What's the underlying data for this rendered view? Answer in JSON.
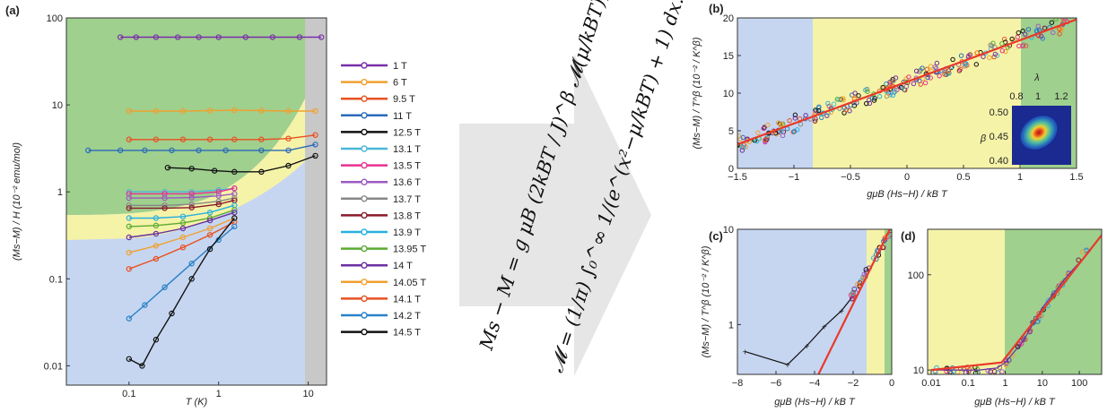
{
  "chart_data": [
    {
      "panel": "(a)",
      "type": "line",
      "xlabel": "T (K)",
      "ylabel": "(Ms−M) / H (10⁻² emu/mol)",
      "xscale": "log",
      "yscale": "log",
      "xlim": [
        0.02,
        16
      ],
      "ylim": [
        0.006,
        100
      ],
      "xticks": [
        {
          "v": 0.1,
          "label": "0.1"
        },
        {
          "v": 1,
          "label": "1"
        },
        {
          "v": 10,
          "label": "10"
        }
      ],
      "yticks": [
        {
          "v": 0.01,
          "label": "0.01"
        },
        {
          "v": 0.1,
          "label": "0.1"
        },
        {
          "v": 1,
          "label": "1"
        },
        {
          "v": 10,
          "label": "10"
        },
        {
          "v": 100,
          "label": "100"
        }
      ],
      "series": [
        {
          "name": "1 T",
          "color": "#7a2ea8",
          "x": [
            0.08,
            0.12,
            0.2,
            0.35,
            0.6,
            1,
            2,
            4,
            8,
            14
          ],
          "y": [
            60,
            60,
            60,
            60,
            60,
            60,
            60,
            60,
            60,
            60
          ]
        },
        {
          "name": "6 T",
          "color": "#f0a030",
          "x": [
            0.1,
            0.2,
            0.4,
            0.8,
            1.5,
            3,
            6,
            12
          ],
          "y": [
            8.5,
            8.5,
            8.5,
            8.6,
            8.7,
            8.6,
            8.5,
            8.5
          ]
        },
        {
          "name": "9.5 T",
          "color": "#e85020",
          "x": [
            0.1,
            0.2,
            0.4,
            0.8,
            1.5,
            3,
            6,
            12
          ],
          "y": [
            4,
            4,
            4,
            4,
            4,
            4,
            4.1,
            4.5
          ]
        },
        {
          "name": "11 T",
          "color": "#2a6ab8",
          "x": [
            0.035,
            0.08,
            0.15,
            0.3,
            0.6,
            1.2,
            3,
            6,
            12
          ],
          "y": [
            3,
            3,
            3,
            3,
            3,
            3,
            3,
            3,
            3.5
          ]
        },
        {
          "name": "12.5 T",
          "color": "#111111",
          "x": [
            0.27,
            0.5,
            0.9,
            1.5,
            3,
            6,
            12
          ],
          "y": [
            1.9,
            1.85,
            1.75,
            1.7,
            1.7,
            2,
            2.6
          ]
        },
        {
          "name": "13.1 T",
          "color": "#4ab8d8",
          "x": [
            0.1,
            0.25,
            0.5,
            1,
            1.5
          ],
          "y": [
            1.0,
            1.0,
            1.0,
            1.05,
            1.1
          ]
        },
        {
          "name": "13.5 T",
          "color": "#e83090",
          "x": [
            0.1,
            0.25,
            0.5,
            1,
            1.5
          ],
          "y": [
            0.95,
            0.95,
            0.95,
            1.0,
            1.1
          ]
        },
        {
          "name": "13.6 T",
          "color": "#9a5ac0",
          "x": [
            0.1,
            0.25,
            0.5,
            1,
            1.5
          ],
          "y": [
            0.85,
            0.85,
            0.86,
            0.9,
            0.95
          ]
        },
        {
          "name": "13.7 T",
          "color": "#888888",
          "x": [
            0.1,
            0.25,
            0.5,
            1,
            1.5
          ],
          "y": [
            0.7,
            0.7,
            0.72,
            0.78,
            0.85
          ]
        },
        {
          "name": "13.8 T",
          "color": "#8a1a2a",
          "x": [
            0.1,
            0.25,
            0.5,
            1,
            1.5
          ],
          "y": [
            0.65,
            0.65,
            0.66,
            0.72,
            0.8
          ]
        },
        {
          "name": "13.9 T",
          "color": "#28b0e0",
          "x": [
            0.1,
            0.2,
            0.4,
            0.8,
            1.5
          ],
          "y": [
            0.5,
            0.5,
            0.52,
            0.58,
            0.7
          ]
        },
        {
          "name": "13.95 T",
          "color": "#5aaa30",
          "x": [
            0.1,
            0.2,
            0.4,
            0.8,
            1.5
          ],
          "y": [
            0.4,
            0.41,
            0.44,
            0.5,
            0.62
          ]
        },
        {
          "name": "14 T",
          "color": "#6a30a0",
          "x": [
            0.1,
            0.2,
            0.4,
            0.8,
            1.5
          ],
          "y": [
            0.3,
            0.33,
            0.38,
            0.47,
            0.58
          ]
        },
        {
          "name": "14.05 T",
          "color": "#f0a030",
          "x": [
            0.1,
            0.2,
            0.4,
            0.8,
            1.5
          ],
          "y": [
            0.2,
            0.24,
            0.3,
            0.38,
            0.5
          ]
        },
        {
          "name": "14.1 T",
          "color": "#e85020",
          "x": [
            0.1,
            0.2,
            0.4,
            0.8,
            1.5
          ],
          "y": [
            0.13,
            0.17,
            0.23,
            0.32,
            0.45
          ]
        },
        {
          "name": "14.2 T",
          "color": "#2a80c8",
          "x": [
            0.1,
            0.15,
            0.25,
            0.5,
            1,
            1.5
          ],
          "y": [
            0.035,
            0.05,
            0.08,
            0.15,
            0.28,
            0.4
          ]
        },
        {
          "name": "14.5 T",
          "color": "#111111",
          "x": [
            0.1,
            0.14,
            0.2,
            0.3,
            0.5,
            0.8,
            1.5
          ],
          "y": [
            0.012,
            0.01,
            0.02,
            0.04,
            0.1,
            0.22,
            0.5
          ]
        }
      ]
    },
    {
      "panel": "(b)",
      "type": "scatter",
      "xlabel": "gμB (Hs−H) / kB T",
      "ylabel": "(Ms−M) / T^β (10⁻² / K^β)",
      "xlim": [
        -1.5,
        1.5
      ],
      "ylim": [
        0,
        20
      ],
      "xticks": [
        {
          "v": -1.5,
          "label": "−1.5"
        },
        {
          "v": -1,
          "label": "−1"
        },
        {
          "v": -0.5,
          "label": "−0.5"
        },
        {
          "v": 0,
          "label": "0"
        },
        {
          "v": 0.5,
          "label": "0.5"
        },
        {
          "v": 1,
          "label": "1"
        },
        {
          "v": 1.5,
          "label": "1.5"
        }
      ],
      "yticks": [
        {
          "v": 0,
          "label": "0"
        },
        {
          "v": 5,
          "label": "5"
        },
        {
          "v": 10,
          "label": "10"
        },
        {
          "v": 15,
          "label": "15"
        },
        {
          "v": 20,
          "label": "20"
        }
      ],
      "fit": {
        "x": [
          -1.5,
          1.5
        ],
        "y": [
          3.2,
          19.8
        ]
      },
      "inset": {
        "xlabel": "λ",
        "ylabel": "β",
        "xticks": [
          "0.8",
          "1",
          "1.2"
        ],
        "yticks": [
          "0.50",
          "0.45",
          "0.40"
        ]
      }
    },
    {
      "panel": "(c)",
      "type": "line",
      "xlabel": "gμB (Hs−H) / kB T",
      "ylabel": "(Ms−M) / T^β (10⁻² / K^β)",
      "xlim": [
        -8,
        0
      ],
      "ylim": [
        0.3,
        10
      ],
      "xticks": [
        {
          "v": -8,
          "label": "−8"
        },
        {
          "v": -6,
          "label": "−6"
        },
        {
          "v": -4,
          "label": "−4"
        },
        {
          "v": -2,
          "label": "−2"
        },
        {
          "v": 0,
          "label": "0"
        }
      ],
      "yticks": [
        {
          "v": 1,
          "label": "1"
        },
        {
          "v": 10,
          "label": "10"
        }
      ],
      "series": [
        {
          "name": "",
          "color": "#111111",
          "x": [
            -7.6,
            -5.4,
            -4.4,
            -3.5,
            -2.6,
            -2
          ],
          "y": [
            0.52,
            0.38,
            0.6,
            0.95,
            1.4,
            2
          ]
        }
      ],
      "fit": {
        "x": [
          -3.8,
          -0.1
        ],
        "y": [
          0.3,
          10
        ]
      }
    },
    {
      "panel": "(d)",
      "type": "line",
      "xlabel": "gμB (Hs−H) / kB T",
      "ylabel": "",
      "xscale": "log",
      "yscale": "log",
      "xlim": [
        0.008,
        400
      ],
      "ylim": [
        9,
        300
      ],
      "xticks": [
        {
          "v": 0.01,
          "label": "0.01"
        },
        {
          "v": 0.1,
          "label": "0.1"
        },
        {
          "v": 1,
          "label": "1"
        },
        {
          "v": 10,
          "label": "10"
        },
        {
          "v": 100,
          "label": "100"
        }
      ],
      "yticks": [
        {
          "v": 10,
          "label": "10"
        },
        {
          "v": 100,
          "label": "100"
        }
      ],
      "series": [
        {
          "name": "",
          "color": "#6a30a0",
          "x": [
            0.01,
            0.05,
            0.2,
            0.6,
            1,
            3,
            10,
            50,
            200
          ],
          "y": [
            10,
            10,
            10,
            10.5,
            12,
            20,
            45,
            100,
            180
          ]
        }
      ],
      "fit": {
        "x": [
          0.01,
          0.8,
          400
        ],
        "y": [
          10,
          12,
          260
        ]
      }
    }
  ],
  "equation": {
    "line1": "Ms − M = g μB (2kBT / J)^β 𝓜(μ/kBT),",
    "line2": "𝓜 = (1/π) ∫₀^∞ 1/(e^(x²−μ/kBT) + 1) dx."
  },
  "colors": {
    "blue": "#c6d6f0",
    "yellow": "#f5f3a8",
    "green": "#9fd08e",
    "gray": "#c8c8c8",
    "fit": "#e83a2a"
  }
}
